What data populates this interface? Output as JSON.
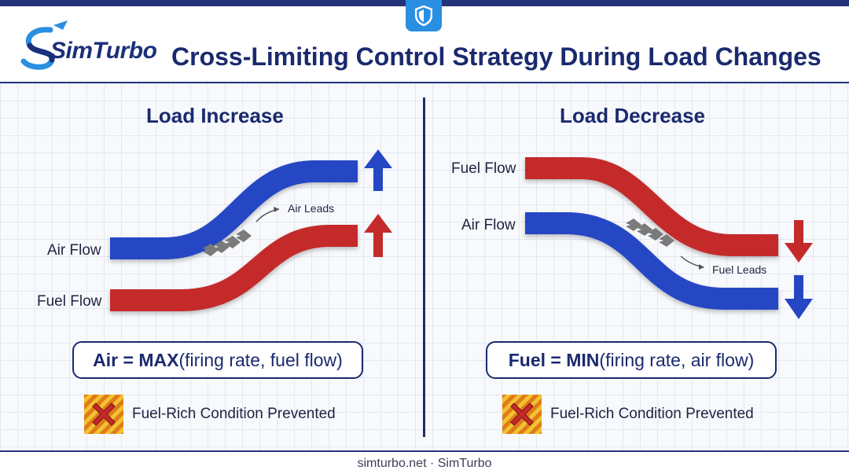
{
  "header": {
    "logo_text": "SimTurbo",
    "title": "Cross-Limiting Control Strategy During Load Changes"
  },
  "left_panel": {
    "title": "Load Increase",
    "air_label": "Air Flow",
    "fuel_label": "Fuel Flow",
    "lead_label": "Air Leads",
    "formula_bold": "Air = MAX",
    "formula_rest": "(firing rate, fuel flow)",
    "status": "Fuel-Rich Condition Prevented"
  },
  "right_panel": {
    "title": "Load Decrease",
    "fuel_label": "Fuel Flow",
    "air_label": "Air Flow",
    "lead_label": "Fuel Leads",
    "formula_bold": "Fuel = MIN",
    "formula_rest": "(firing rate, air flow)",
    "status": "Fuel-Rich Condition Prevented"
  },
  "footer": {
    "text": "simturbo.net · SimTurbo"
  },
  "colors": {
    "air": "#2547c4",
    "fuel": "#c42a2a",
    "navy": "#1b2a6e",
    "accent": "#2a8fe0"
  },
  "icons": [
    "shield-icon",
    "logo-swoosh-icon",
    "arrow-up-icon",
    "arrow-down-icon",
    "chevron-icon",
    "warning-x-icon"
  ]
}
